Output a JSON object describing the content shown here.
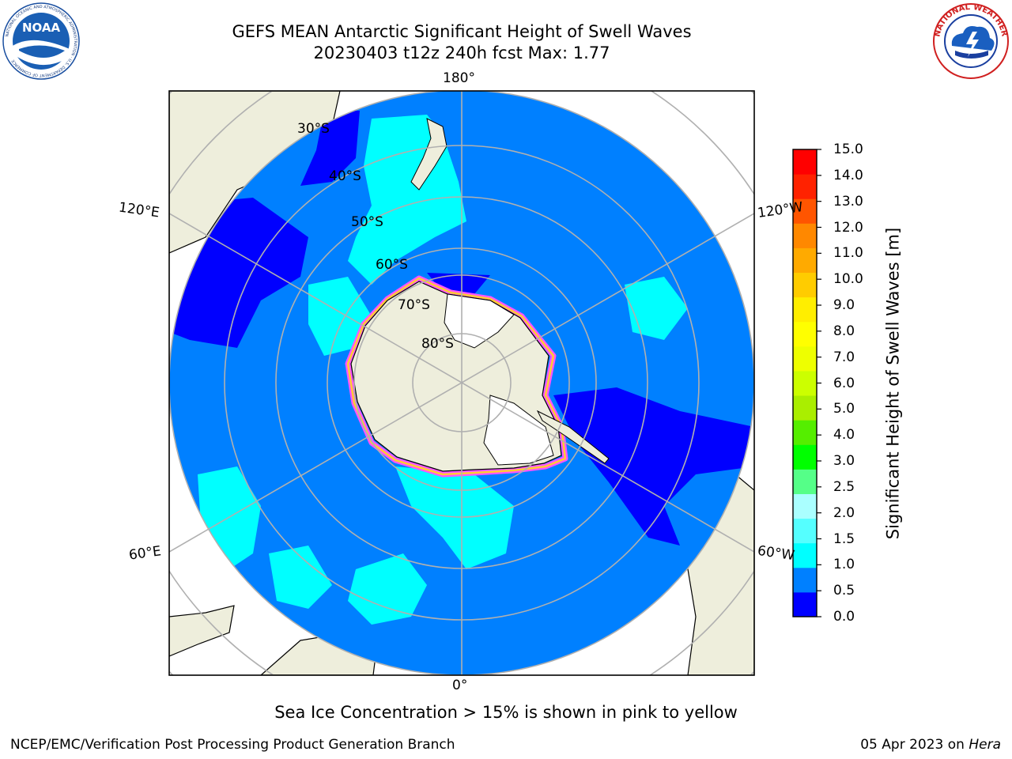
{
  "title": {
    "line1": "GEFS MEAN Antarctic Significant Height of Swell Waves",
    "line2": "20230403 t12z 240h fcst   Max: 1.77"
  },
  "map": {
    "projection": "south-polar-stereographic",
    "longitude_labels": {
      "top": "180°",
      "bottom": "0°",
      "upper_left": "120°E",
      "upper_right": "120°W",
      "lower_left": "60°E",
      "lower_right": "60°W"
    },
    "latitude_labels": [
      "30°S",
      "40°S",
      "50°S",
      "60°S",
      "70°S",
      "80°S"
    ]
  },
  "colorbar": {
    "title": "Significant Height of Swell Waves [m]",
    "ticks": [
      "0.0",
      "0.5",
      "1.0",
      "1.5",
      "2.0",
      "2.5",
      "3.0",
      "4.0",
      "5.0",
      "6.0",
      "7.0",
      "8.0",
      "9.0",
      "10.0",
      "11.0",
      "12.0",
      "13.0",
      "14.0",
      "15.0"
    ],
    "colors": [
      "#0000ff",
      "#0080ff",
      "#00ffff",
      "#55ffff",
      "#aaffff",
      "#55ff88",
      "#00ff00",
      "#55ee00",
      "#aaee00",
      "#ccff00",
      "#eeff00",
      "#ffff00",
      "#ffee00",
      "#ffcc00",
      "#ffaa00",
      "#ff8800",
      "#ff5500",
      "#ff2200",
      "#ff0000"
    ]
  },
  "colors": {
    "ocean": "#0080ff",
    "land": "#eeeedc",
    "ice_sheet": "#ffffff",
    "swell_low": "#0000ff",
    "swell_mid": "#00ffff",
    "sea_ice_edge": "#ff55ff"
  },
  "note": "Sea Ice Concentration > 15% is shown in pink to yellow",
  "footer": {
    "left": "NCEP/EMC/Verification Post Processing Product Generation Branch",
    "date": "05 Apr 2023 on ",
    "machine": "Hera"
  },
  "logos": {
    "left": "NOAA",
    "left_ring": "NATIONAL OCEANIC AND ATMOSPHERIC ADMINISTRATION · U.S. DEPARTMENT OF COMMERCE",
    "right_ring": "NATIONAL WEATHER SERVICE"
  }
}
